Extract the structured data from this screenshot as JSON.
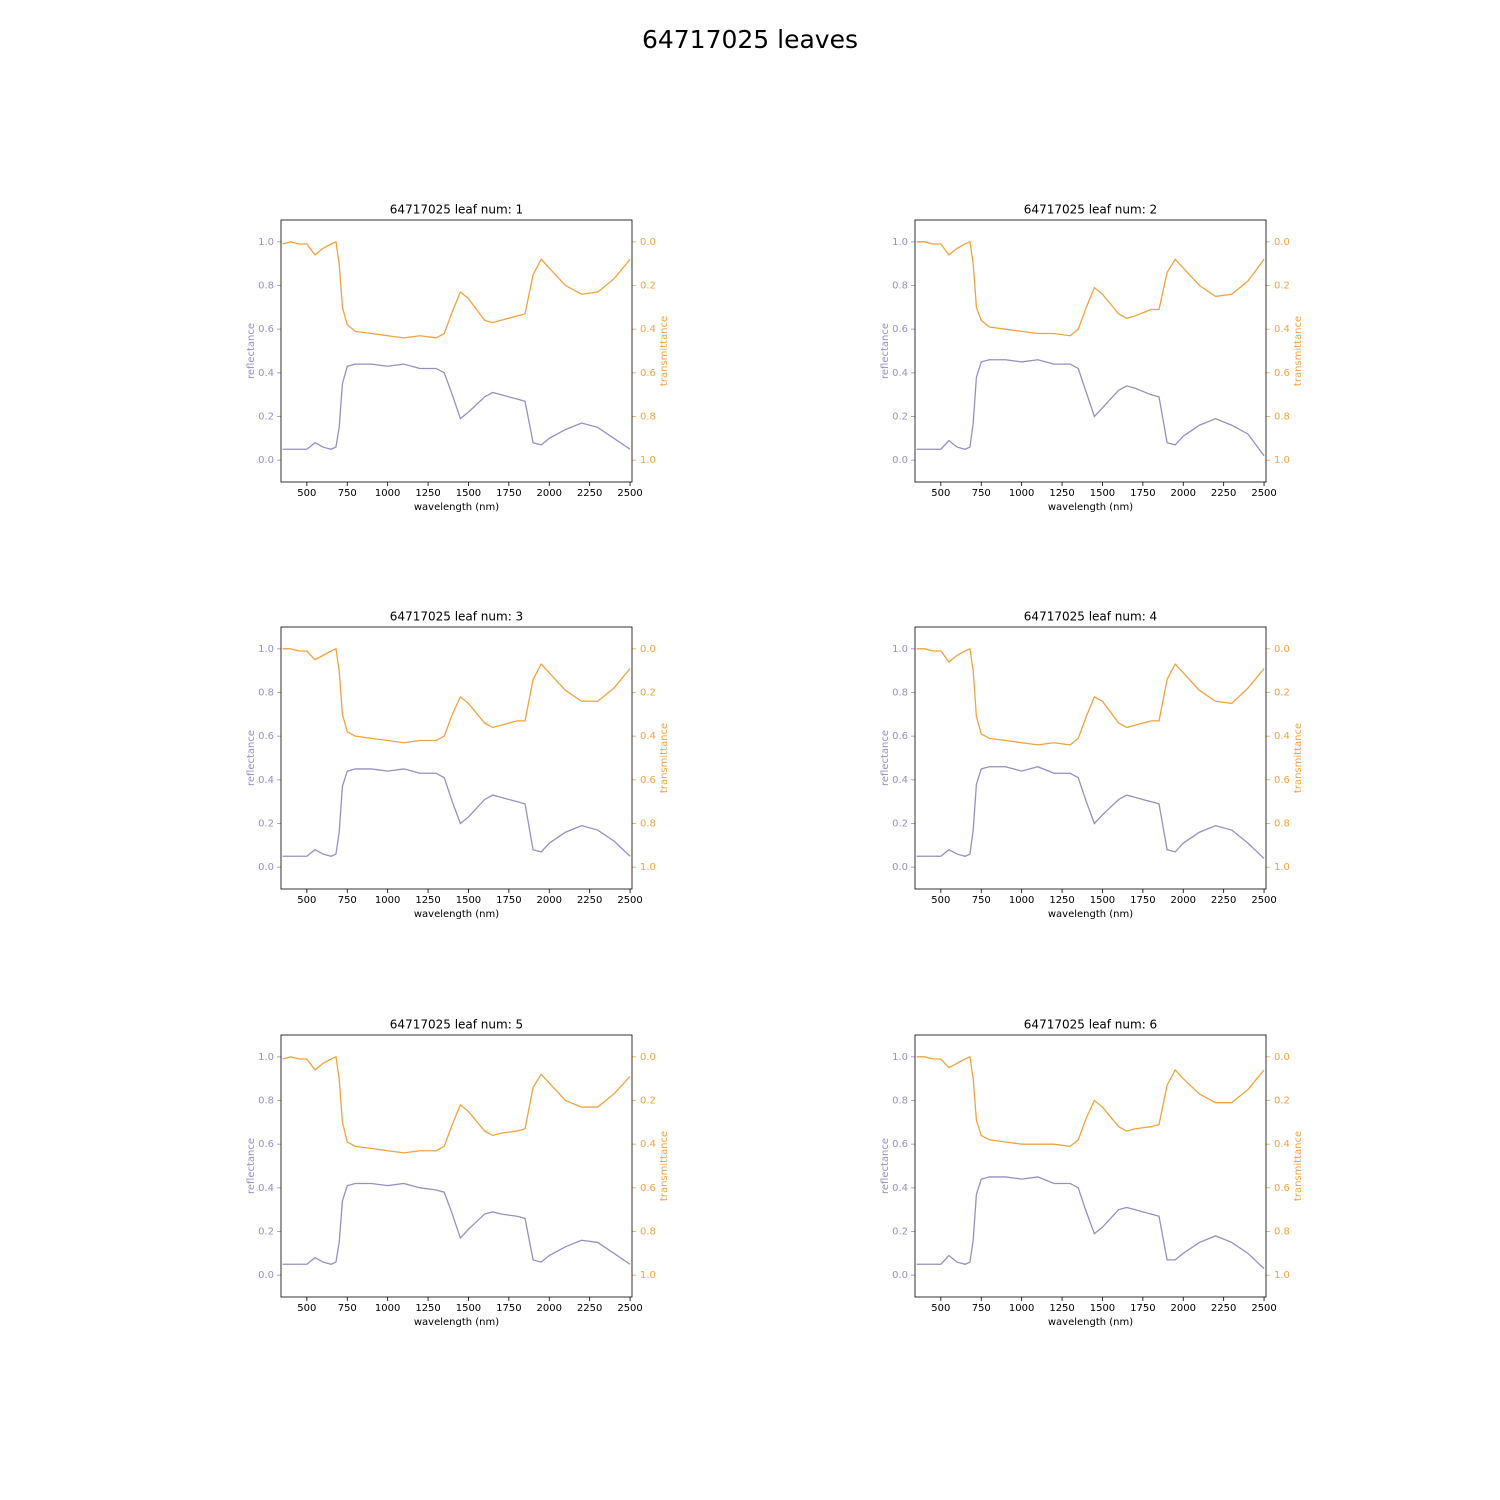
{
  "title": "64717025 leaves",
  "chart_data": [
    {
      "type": "line",
      "title": "64717025 leaf num: 1",
      "xlabel": "wavelength (nm)",
      "ylabel": "reflectance",
      "y2label": "transmittance",
      "x": [
        350,
        400,
        450,
        500,
        550,
        600,
        650,
        680,
        700,
        720,
        750,
        800,
        900,
        1000,
        1100,
        1200,
        1300,
        1350,
        1400,
        1450,
        1500,
        1600,
        1650,
        1700,
        1800,
        1850,
        1900,
        1950,
        2000,
        2100,
        2200,
        2300,
        2400,
        2500
      ],
      "series": [
        {
          "name": "reflectance",
          "color": "#998ec3",
          "values": [
            0.05,
            0.05,
            0.05,
            0.05,
            0.08,
            0.06,
            0.05,
            0.06,
            0.15,
            0.35,
            0.43,
            0.44,
            0.44,
            0.43,
            0.44,
            0.42,
            0.42,
            0.4,
            0.3,
            0.19,
            0.22,
            0.29,
            0.31,
            0.3,
            0.28,
            0.27,
            0.08,
            0.07,
            0.1,
            0.14,
            0.17,
            0.15,
            0.1,
            0.05
          ]
        },
        {
          "name": "transmittance",
          "color": "#f1a340",
          "axis": "y2",
          "values": [
            0.01,
            0.0,
            0.01,
            0.01,
            0.06,
            0.03,
            0.01,
            0.0,
            0.1,
            0.3,
            0.38,
            0.41,
            0.42,
            0.43,
            0.44,
            0.43,
            0.44,
            0.42,
            0.32,
            0.23,
            0.26,
            0.36,
            0.37,
            0.36,
            0.34,
            0.33,
            0.15,
            0.08,
            0.12,
            0.2,
            0.24,
            0.23,
            0.17,
            0.08
          ]
        }
      ],
      "xlim": [
        340,
        2512
      ],
      "xticks": [
        500,
        750,
        1000,
        1250,
        1500,
        1750,
        2000,
        2250,
        2500
      ],
      "ylim": [
        -0.1,
        1.1
      ],
      "yticks": [
        {
          "value": 0,
          "label": "0.0"
        },
        0.2,
        0.4,
        0.6,
        0.8,
        {
          "value": 1,
          "label": "1.0"
        }
      ],
      "y2lim": [
        1.1,
        -0.1
      ],
      "y2ticks": [
        {
          "value": 0,
          "label": "0.0"
        },
        0.2,
        0.4,
        0.6,
        0.8,
        {
          "value": 1,
          "label": "1.0"
        }
      ]
    },
    {
      "type": "line",
      "title": "64717025 leaf num: 2",
      "xlabel": "wavelength (nm)",
      "ylabel": "reflectance",
      "y2label": "transmittance",
      "x": [
        350,
        400,
        450,
        500,
        550,
        600,
        650,
        680,
        700,
        720,
        750,
        800,
        900,
        1000,
        1100,
        1200,
        1300,
        1350,
        1400,
        1450,
        1500,
        1600,
        1650,
        1700,
        1800,
        1850,
        1900,
        1950,
        2000,
        2100,
        2200,
        2300,
        2400,
        2500
      ],
      "series": [
        {
          "name": "reflectance",
          "color": "#998ec3",
          "values": [
            0.05,
            0.05,
            0.05,
            0.05,
            0.09,
            0.06,
            0.05,
            0.06,
            0.17,
            0.38,
            0.45,
            0.46,
            0.46,
            0.45,
            0.46,
            0.44,
            0.44,
            0.42,
            0.31,
            0.2,
            0.24,
            0.32,
            0.34,
            0.33,
            0.3,
            0.29,
            0.08,
            0.07,
            0.11,
            0.16,
            0.19,
            0.16,
            0.12,
            0.02
          ]
        },
        {
          "name": "transmittance",
          "color": "#f1a340",
          "axis": "y2",
          "values": [
            0.0,
            0.0,
            0.01,
            0.01,
            0.06,
            0.03,
            0.01,
            0.0,
            0.1,
            0.3,
            0.36,
            0.39,
            0.4,
            0.41,
            0.42,
            0.42,
            0.43,
            0.4,
            0.3,
            0.21,
            0.24,
            0.33,
            0.35,
            0.34,
            0.31,
            0.31,
            0.14,
            0.08,
            0.12,
            0.2,
            0.25,
            0.24,
            0.18,
            0.08
          ]
        }
      ],
      "xlim": [
        340,
        2512
      ],
      "xticks": [
        500,
        750,
        1000,
        1250,
        1500,
        1750,
        2000,
        2250,
        2500
      ],
      "ylim": [
        -0.1,
        1.1
      ],
      "yticks": [
        {
          "value": 0,
          "label": "0.0"
        },
        0.2,
        0.4,
        0.6,
        0.8,
        {
          "value": 1,
          "label": "1.0"
        }
      ],
      "y2lim": [
        1.1,
        -0.1
      ],
      "y2ticks": [
        {
          "value": 0,
          "label": "0.0"
        },
        0.2,
        0.4,
        0.6,
        0.8,
        {
          "value": 1,
          "label": "1.0"
        }
      ]
    },
    {
      "type": "line",
      "title": "64717025 leaf num: 3",
      "xlabel": "wavelength (nm)",
      "ylabel": "reflectance",
      "y2label": "transmittance",
      "x": [
        350,
        400,
        450,
        500,
        550,
        600,
        650,
        680,
        700,
        720,
        750,
        800,
        900,
        1000,
        1100,
        1200,
        1300,
        1350,
        1400,
        1450,
        1500,
        1600,
        1650,
        1700,
        1800,
        1850,
        1900,
        1950,
        2000,
        2100,
        2200,
        2300,
        2400,
        2500
      ],
      "series": [
        {
          "name": "reflectance",
          "color": "#998ec3",
          "values": [
            0.05,
            0.05,
            0.05,
            0.05,
            0.08,
            0.06,
            0.05,
            0.06,
            0.16,
            0.37,
            0.44,
            0.45,
            0.45,
            0.44,
            0.45,
            0.43,
            0.43,
            0.41,
            0.3,
            0.2,
            0.23,
            0.31,
            0.33,
            0.32,
            0.3,
            0.29,
            0.08,
            0.07,
            0.11,
            0.16,
            0.19,
            0.17,
            0.12,
            0.05
          ]
        },
        {
          "name": "transmittance",
          "color": "#f1a340",
          "axis": "y2",
          "values": [
            0.0,
            0.0,
            0.01,
            0.01,
            0.05,
            0.03,
            0.01,
            0.0,
            0.1,
            0.3,
            0.38,
            0.4,
            0.41,
            0.42,
            0.43,
            0.42,
            0.42,
            0.4,
            0.3,
            0.22,
            0.25,
            0.34,
            0.36,
            0.35,
            0.33,
            0.33,
            0.14,
            0.07,
            0.11,
            0.19,
            0.24,
            0.24,
            0.18,
            0.09
          ]
        }
      ],
      "xlim": [
        340,
        2512
      ],
      "xticks": [
        500,
        750,
        1000,
        1250,
        1500,
        1750,
        2000,
        2250,
        2500
      ],
      "ylim": [
        -0.1,
        1.1
      ],
      "yticks": [
        {
          "value": 0,
          "label": "0.0"
        },
        0.2,
        0.4,
        0.6,
        0.8,
        {
          "value": 1,
          "label": "1.0"
        }
      ],
      "y2lim": [
        1.1,
        -0.1
      ],
      "y2ticks": [
        {
          "value": 0,
          "label": "0.0"
        },
        0.2,
        0.4,
        0.6,
        0.8,
        {
          "value": 1,
          "label": "1.0"
        }
      ]
    },
    {
      "type": "line",
      "title": "64717025 leaf num: 4",
      "xlabel": "wavelength (nm)",
      "ylabel": "reflectance",
      "y2label": "transmittance",
      "x": [
        350,
        400,
        450,
        500,
        550,
        600,
        650,
        680,
        700,
        720,
        750,
        800,
        900,
        1000,
        1100,
        1200,
        1300,
        1350,
        1400,
        1450,
        1500,
        1600,
        1650,
        1700,
        1800,
        1850,
        1900,
        1950,
        2000,
        2100,
        2200,
        2300,
        2400,
        2500
      ],
      "series": [
        {
          "name": "reflectance",
          "color": "#998ec3",
          "values": [
            0.05,
            0.05,
            0.05,
            0.05,
            0.08,
            0.06,
            0.05,
            0.06,
            0.17,
            0.38,
            0.45,
            0.46,
            0.46,
            0.44,
            0.46,
            0.43,
            0.43,
            0.41,
            0.3,
            0.2,
            0.24,
            0.31,
            0.33,
            0.32,
            0.3,
            0.29,
            0.08,
            0.07,
            0.11,
            0.16,
            0.19,
            0.17,
            0.11,
            0.04
          ]
        },
        {
          "name": "transmittance",
          "color": "#f1a340",
          "axis": "y2",
          "values": [
            0.0,
            0.0,
            0.01,
            0.01,
            0.06,
            0.03,
            0.01,
            0.0,
            0.1,
            0.31,
            0.39,
            0.41,
            0.42,
            0.43,
            0.44,
            0.43,
            0.44,
            0.41,
            0.31,
            0.22,
            0.24,
            0.34,
            0.36,
            0.35,
            0.33,
            0.33,
            0.14,
            0.07,
            0.11,
            0.19,
            0.24,
            0.25,
            0.18,
            0.09
          ]
        }
      ],
      "xlim": [
        340,
        2512
      ],
      "xticks": [
        500,
        750,
        1000,
        1250,
        1500,
        1750,
        2000,
        2250,
        2500
      ],
      "ylim": [
        -0.1,
        1.1
      ],
      "yticks": [
        {
          "value": 0,
          "label": "0.0"
        },
        0.2,
        0.4,
        0.6,
        0.8,
        {
          "value": 1,
          "label": "1.0"
        }
      ],
      "y2lim": [
        1.1,
        -0.1
      ],
      "y2ticks": [
        {
          "value": 0,
          "label": "0.0"
        },
        0.2,
        0.4,
        0.6,
        0.8,
        {
          "value": 1,
          "label": "1.0"
        }
      ]
    },
    {
      "type": "line",
      "title": "64717025 leaf num: 5",
      "xlabel": "wavelength (nm)",
      "ylabel": "reflectance",
      "y2label": "transmittance",
      "x": [
        350,
        400,
        450,
        500,
        550,
        600,
        650,
        680,
        700,
        720,
        750,
        800,
        900,
        1000,
        1100,
        1200,
        1300,
        1350,
        1400,
        1450,
        1500,
        1600,
        1650,
        1700,
        1800,
        1850,
        1900,
        1950,
        2000,
        2100,
        2200,
        2300,
        2400,
        2500
      ],
      "series": [
        {
          "name": "reflectance",
          "color": "#998ec3",
          "values": [
            0.05,
            0.05,
            0.05,
            0.05,
            0.08,
            0.06,
            0.05,
            0.06,
            0.15,
            0.34,
            0.41,
            0.42,
            0.42,
            0.41,
            0.42,
            0.4,
            0.39,
            0.38,
            0.28,
            0.17,
            0.21,
            0.28,
            0.29,
            0.28,
            0.27,
            0.26,
            0.07,
            0.06,
            0.09,
            0.13,
            0.16,
            0.15,
            0.1,
            0.05
          ]
        },
        {
          "name": "transmittance",
          "color": "#f1a340",
          "axis": "y2",
          "values": [
            0.01,
            0.0,
            0.01,
            0.01,
            0.06,
            0.03,
            0.01,
            0.0,
            0.1,
            0.3,
            0.39,
            0.41,
            0.42,
            0.43,
            0.44,
            0.43,
            0.43,
            0.41,
            0.31,
            0.22,
            0.25,
            0.34,
            0.36,
            0.35,
            0.34,
            0.33,
            0.14,
            0.08,
            0.12,
            0.2,
            0.23,
            0.23,
            0.17,
            0.09
          ]
        }
      ],
      "xlim": [
        340,
        2512
      ],
      "xticks": [
        500,
        750,
        1000,
        1250,
        1500,
        1750,
        2000,
        2250,
        2500
      ],
      "ylim": [
        -0.1,
        1.1
      ],
      "yticks": [
        {
          "value": 0,
          "label": "0.0"
        },
        0.2,
        0.4,
        0.6,
        0.8,
        {
          "value": 1,
          "label": "1.0"
        }
      ],
      "y2lim": [
        1.1,
        -0.1
      ],
      "y2ticks": [
        {
          "value": 0,
          "label": "0.0"
        },
        0.2,
        0.4,
        0.6,
        0.8,
        {
          "value": 1,
          "label": "1.0"
        }
      ]
    },
    {
      "type": "line",
      "title": "64717025 leaf num: 6",
      "xlabel": "wavelength (nm)",
      "ylabel": "reflectance",
      "y2label": "transmittance",
      "x": [
        350,
        400,
        450,
        500,
        550,
        600,
        650,
        680,
        700,
        720,
        750,
        800,
        900,
        1000,
        1100,
        1200,
        1300,
        1350,
        1400,
        1450,
        1500,
        1600,
        1650,
        1700,
        1800,
        1850,
        1900,
        1950,
        2000,
        2100,
        2200,
        2300,
        2400,
        2500
      ],
      "series": [
        {
          "name": "reflectance",
          "color": "#998ec3",
          "values": [
            0.05,
            0.05,
            0.05,
            0.05,
            0.09,
            0.06,
            0.05,
            0.06,
            0.16,
            0.37,
            0.44,
            0.45,
            0.45,
            0.44,
            0.45,
            0.42,
            0.42,
            0.4,
            0.29,
            0.19,
            0.22,
            0.3,
            0.31,
            0.3,
            0.28,
            0.27,
            0.07,
            0.07,
            0.1,
            0.15,
            0.18,
            0.15,
            0.1,
            0.03
          ]
        },
        {
          "name": "transmittance",
          "color": "#f1a340",
          "axis": "y2",
          "values": [
            0.0,
            0.0,
            0.01,
            0.01,
            0.05,
            0.03,
            0.01,
            0.0,
            0.1,
            0.29,
            0.36,
            0.38,
            0.39,
            0.4,
            0.4,
            0.4,
            0.41,
            0.38,
            0.28,
            0.2,
            0.23,
            0.32,
            0.34,
            0.33,
            0.32,
            0.31,
            0.13,
            0.06,
            0.1,
            0.17,
            0.21,
            0.21,
            0.15,
            0.06
          ]
        }
      ],
      "xlim": [
        340,
        2512
      ],
      "xticks": [
        500,
        750,
        1000,
        1250,
        1500,
        1750,
        2000,
        2250,
        2500
      ],
      "ylim": [
        -0.1,
        1.1
      ],
      "yticks": [
        {
          "value": 0,
          "label": "0.0"
        },
        0.2,
        0.4,
        0.6,
        0.8,
        {
          "value": 1,
          "label": "1.0"
        }
      ],
      "y2lim": [
        1.1,
        -0.1
      ],
      "y2ticks": [
        {
          "value": 0,
          "label": "0.0"
        },
        0.2,
        0.4,
        0.6,
        0.8,
        {
          "value": 1,
          "label": "1.0"
        }
      ]
    }
  ]
}
